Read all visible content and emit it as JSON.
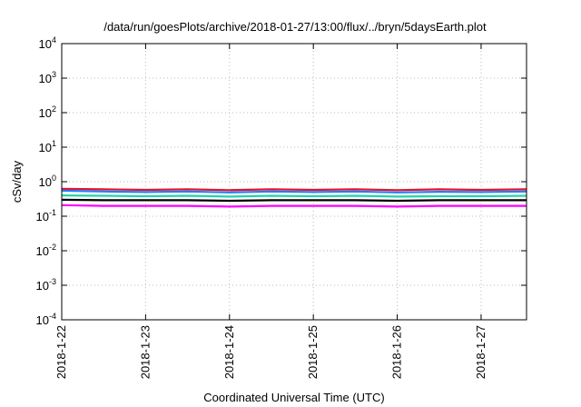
{
  "chart_data": {
    "type": "line",
    "title": "/data/run/goesPlots/archive/2018-01-27/13:00/flux/../bryn/5daysEarth.plot",
    "xlabel": "Coordinated Universal Time (UTC)",
    "ylabel": "cSv/day",
    "yscale": "log",
    "ylim": [
      0.0001,
      10000
    ],
    "xlim": [
      "2018-01-22T00:00",
      "2018-01-27T13:00"
    ],
    "x_ticks": [
      "2018-1-22",
      "2018-1-23",
      "2018-1-24",
      "2018-1-25",
      "2018-1-26",
      "2018-1-27"
    ],
    "y_ticks": [
      {
        "base": "10",
        "exp": "4",
        "value": 10000
      },
      {
        "base": "10",
        "exp": "3",
        "value": 1000
      },
      {
        "base": "10",
        "exp": "2",
        "value": 100
      },
      {
        "base": "10",
        "exp": "1",
        "value": 10
      },
      {
        "base": "10",
        "exp": "0",
        "value": 1
      },
      {
        "base": "10",
        "exp": "-1",
        "value": 0.1
      },
      {
        "base": "10",
        "exp": "-2",
        "value": 0.01
      },
      {
        "base": "10",
        "exp": "-3",
        "value": 0.001
      },
      {
        "base": "10",
        "exp": "-4",
        "value": 0.0001
      }
    ],
    "grid": true,
    "series": [
      {
        "color": "#e8102a",
        "x": [
          "2018-01-22T00:00",
          "2018-01-22T12:00",
          "2018-01-23T00:00",
          "2018-01-23T12:00",
          "2018-01-24T00:00",
          "2018-01-24T12:00",
          "2018-01-25T00:00",
          "2018-01-25T12:00",
          "2018-01-26T00:00",
          "2018-01-26T12:00",
          "2018-01-27T00:00",
          "2018-01-27T13:00"
        ],
        "values": [
          0.62,
          0.6,
          0.58,
          0.6,
          0.57,
          0.6,
          0.58,
          0.6,
          0.57,
          0.6,
          0.58,
          0.6
        ]
      },
      {
        "color": "#1f7fff",
        "x": [
          "2018-01-22T00:00",
          "2018-01-22T12:00",
          "2018-01-23T00:00",
          "2018-01-23T12:00",
          "2018-01-24T00:00",
          "2018-01-24T12:00",
          "2018-01-25T00:00",
          "2018-01-25T12:00",
          "2018-01-26T00:00",
          "2018-01-26T12:00",
          "2018-01-27T00:00",
          "2018-01-27T13:00"
        ],
        "values": [
          0.55,
          0.52,
          0.5,
          0.52,
          0.49,
          0.52,
          0.5,
          0.52,
          0.49,
          0.51,
          0.5,
          0.52
        ]
      },
      {
        "color": "#21d4a8",
        "x": [
          "2018-01-22T00:00",
          "2018-01-22T12:00",
          "2018-01-23T00:00",
          "2018-01-23T12:00",
          "2018-01-24T00:00",
          "2018-01-24T12:00",
          "2018-01-25T00:00",
          "2018-01-25T12:00",
          "2018-01-26T00:00",
          "2018-01-26T12:00",
          "2018-01-27T00:00",
          "2018-01-27T13:00"
        ],
        "values": [
          0.4,
          0.39,
          0.38,
          0.39,
          0.37,
          0.39,
          0.38,
          0.39,
          0.37,
          0.38,
          0.38,
          0.39
        ]
      },
      {
        "color": "#000000",
        "x": [
          "2018-01-22T00:00",
          "2018-01-22T12:00",
          "2018-01-23T00:00",
          "2018-01-23T12:00",
          "2018-01-24T00:00",
          "2018-01-24T12:00",
          "2018-01-25T00:00",
          "2018-01-25T12:00",
          "2018-01-26T00:00",
          "2018-01-26T12:00",
          "2018-01-27T00:00",
          "2018-01-27T13:00"
        ],
        "values": [
          0.3,
          0.29,
          0.29,
          0.29,
          0.28,
          0.29,
          0.29,
          0.29,
          0.28,
          0.29,
          0.29,
          0.29
        ]
      },
      {
        "color": "#ff00ff",
        "x": [
          "2018-01-22T00:00",
          "2018-01-22T12:00",
          "2018-01-23T00:00",
          "2018-01-23T12:00",
          "2018-01-24T00:00",
          "2018-01-24T12:00",
          "2018-01-25T00:00",
          "2018-01-25T12:00",
          "2018-01-26T00:00",
          "2018-01-26T12:00",
          "2018-01-27T00:00",
          "2018-01-27T13:00"
        ],
        "values": [
          0.21,
          0.2,
          0.2,
          0.2,
          0.19,
          0.2,
          0.2,
          0.2,
          0.19,
          0.2,
          0.2,
          0.2
        ]
      }
    ]
  }
}
